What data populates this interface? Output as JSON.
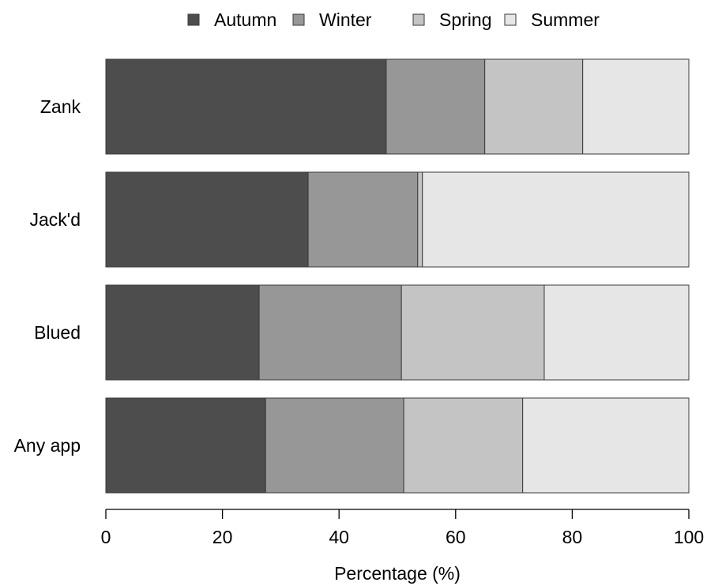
{
  "chart_data": {
    "type": "bar",
    "orientation": "horizontal",
    "stacked": true,
    "categories": [
      "Zank",
      "Jack'd",
      "Blued",
      "Any app"
    ],
    "series": [
      {
        "name": "Autumn",
        "color": "#4d4d4d",
        "values": [
          48.1,
          34.7,
          26.3,
          27.4
        ]
      },
      {
        "name": "Winter",
        "color": "#979797",
        "values": [
          16.9,
          18.8,
          24.4,
          23.7
        ]
      },
      {
        "name": "Spring",
        "color": "#c4c4c4",
        "values": [
          16.8,
          0.8,
          24.5,
          20.4
        ]
      },
      {
        "name": "Summer",
        "color": "#e6e6e6",
        "values": [
          18.2,
          45.7,
          24.8,
          28.5
        ]
      }
    ],
    "xlabel": "Percentage (%)",
    "xlim": [
      0,
      100
    ],
    "xticks": [
      "0",
      "20",
      "40",
      "60",
      "80",
      "100"
    ],
    "grid": false,
    "legend": "top-center"
  }
}
